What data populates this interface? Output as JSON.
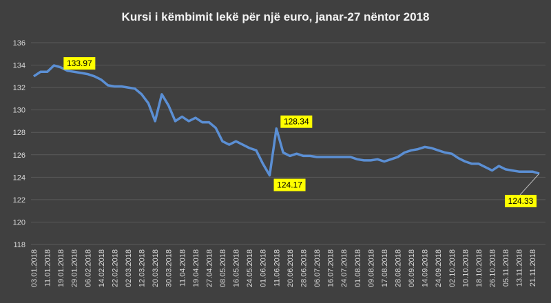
{
  "chart_data": {
    "type": "line",
    "title": "Kursi i këmbimit lekë për një euro, janar-27 nëntor 2018",
    "categories": [
      "03.01.2018",
      null,
      "11.01.2018",
      null,
      "19.01.2018",
      null,
      "29.01.2018",
      null,
      "06.02.2018",
      null,
      "14.02.2018",
      null,
      "22.02.2018",
      null,
      "02.03.2018",
      null,
      "12.03.2018",
      null,
      "20.03.2018",
      null,
      "30.03.2018",
      null,
      "11.04.2018",
      null,
      "19.04.2018",
      null,
      "27.04.2018",
      null,
      "08.05.2018",
      null,
      "16.05.2018",
      null,
      "24.05.2018",
      null,
      "01.06.2018",
      null,
      "11.06.2018",
      null,
      "20.06.2018",
      null,
      "28.06.2018",
      null,
      "06.07.2018",
      null,
      "16.07.2018",
      null,
      "24.07.2018",
      null,
      "01.08.2018",
      null,
      "09.08.2018",
      null,
      "17.08.2018",
      null,
      "28.08.2018",
      null,
      "06.09.2018",
      null,
      "14.09.2018",
      null,
      "24.09.2018",
      null,
      "02.10.2018",
      null,
      "10.10.2018",
      null,
      "18.10.2018",
      null,
      "26.10.2018",
      null,
      "05.11.2018",
      null,
      "13.11.2018",
      null,
      "21.11.2018",
      null
    ],
    "values": [
      133.0,
      133.4,
      133.4,
      133.97,
      133.8,
      133.5,
      133.4,
      133.3,
      133.2,
      133.0,
      132.7,
      132.2,
      132.1,
      132.1,
      132.0,
      131.9,
      131.4,
      130.6,
      129.0,
      131.4,
      130.4,
      129.0,
      129.4,
      129.0,
      129.3,
      128.9,
      128.9,
      128.4,
      127.2,
      126.9,
      127.2,
      126.9,
      126.6,
      126.4,
      125.2,
      124.17,
      128.34,
      126.2,
      125.9,
      126.1,
      125.9,
      125.9,
      125.8,
      125.8,
      125.8,
      125.8,
      125.8,
      125.8,
      125.6,
      125.5,
      125.5,
      125.6,
      125.4,
      125.6,
      125.8,
      126.2,
      126.4,
      126.5,
      126.7,
      126.6,
      126.4,
      126.2,
      126.1,
      125.7,
      125.4,
      125.2,
      125.2,
      124.9,
      124.6,
      125.0,
      124.7,
      124.6,
      124.5,
      124.5,
      124.5,
      124.33
    ],
    "value_labels": [
      null,
      null,
      null,
      "133.97",
      null,
      null,
      null,
      null,
      null,
      null,
      null,
      null,
      null,
      null,
      null,
      null,
      null,
      null,
      null,
      null,
      null,
      null,
      null,
      null,
      null,
      null,
      null,
      null,
      null,
      null,
      null,
      null,
      null,
      null,
      null,
      "124.17",
      "128.34",
      null,
      null,
      null,
      null,
      null,
      null,
      null,
      null,
      null,
      null,
      null,
      null,
      null,
      null,
      null,
      null,
      null,
      null,
      null,
      null,
      null,
      null,
      null,
      null,
      null,
      null,
      null,
      null,
      null,
      null,
      null,
      null,
      null,
      null,
      null,
      null,
      null,
      null,
      "124.33"
    ],
    "color": "#5b8fd4",
    "ylim": [
      118,
      136
    ],
    "yticks": [
      118,
      120,
      122,
      124,
      126,
      128,
      130,
      132,
      134,
      136
    ],
    "grid": true
  }
}
